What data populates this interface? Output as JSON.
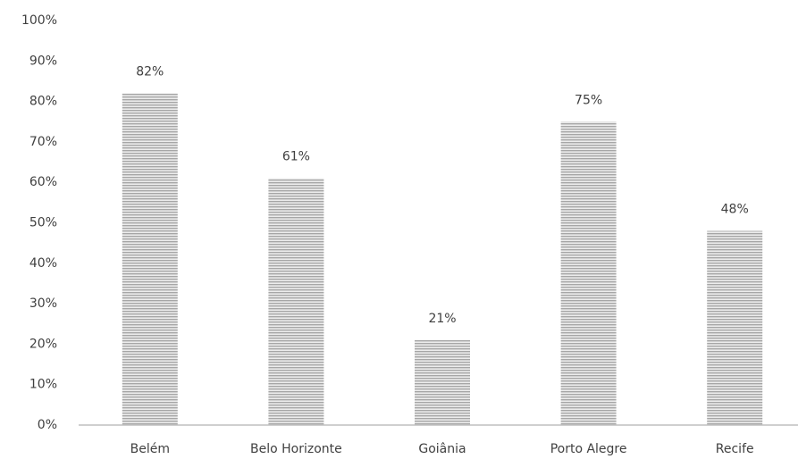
{
  "chart_data": {
    "type": "bar",
    "categories": [
      "Belém",
      "Belo Horizonte",
      "Goiânia",
      "Porto Alegre",
      "Recife"
    ],
    "values": [
      82,
      61,
      21,
      75,
      48
    ],
    "value_labels": [
      "82%",
      "61%",
      "21%",
      "75%",
      "48%"
    ],
    "color": "#a6a6a6",
    "ylim": [
      0,
      100
    ],
    "yticks": [
      {
        "value": 0,
        "label": "0%"
      },
      {
        "value": 10,
        "label": "10%"
      },
      {
        "value": 20,
        "label": "20%"
      },
      {
        "value": 30,
        "label": "30%"
      },
      {
        "value": 40,
        "label": "40%"
      },
      {
        "value": 50,
        "label": "50%"
      },
      {
        "value": 60,
        "label": "60%"
      },
      {
        "value": 70,
        "label": "70%"
      },
      {
        "value": 80,
        "label": "80%"
      },
      {
        "value": 90,
        "label": "90%"
      },
      {
        "value": 100,
        "label": "100%"
      }
    ],
    "grid": false
  }
}
